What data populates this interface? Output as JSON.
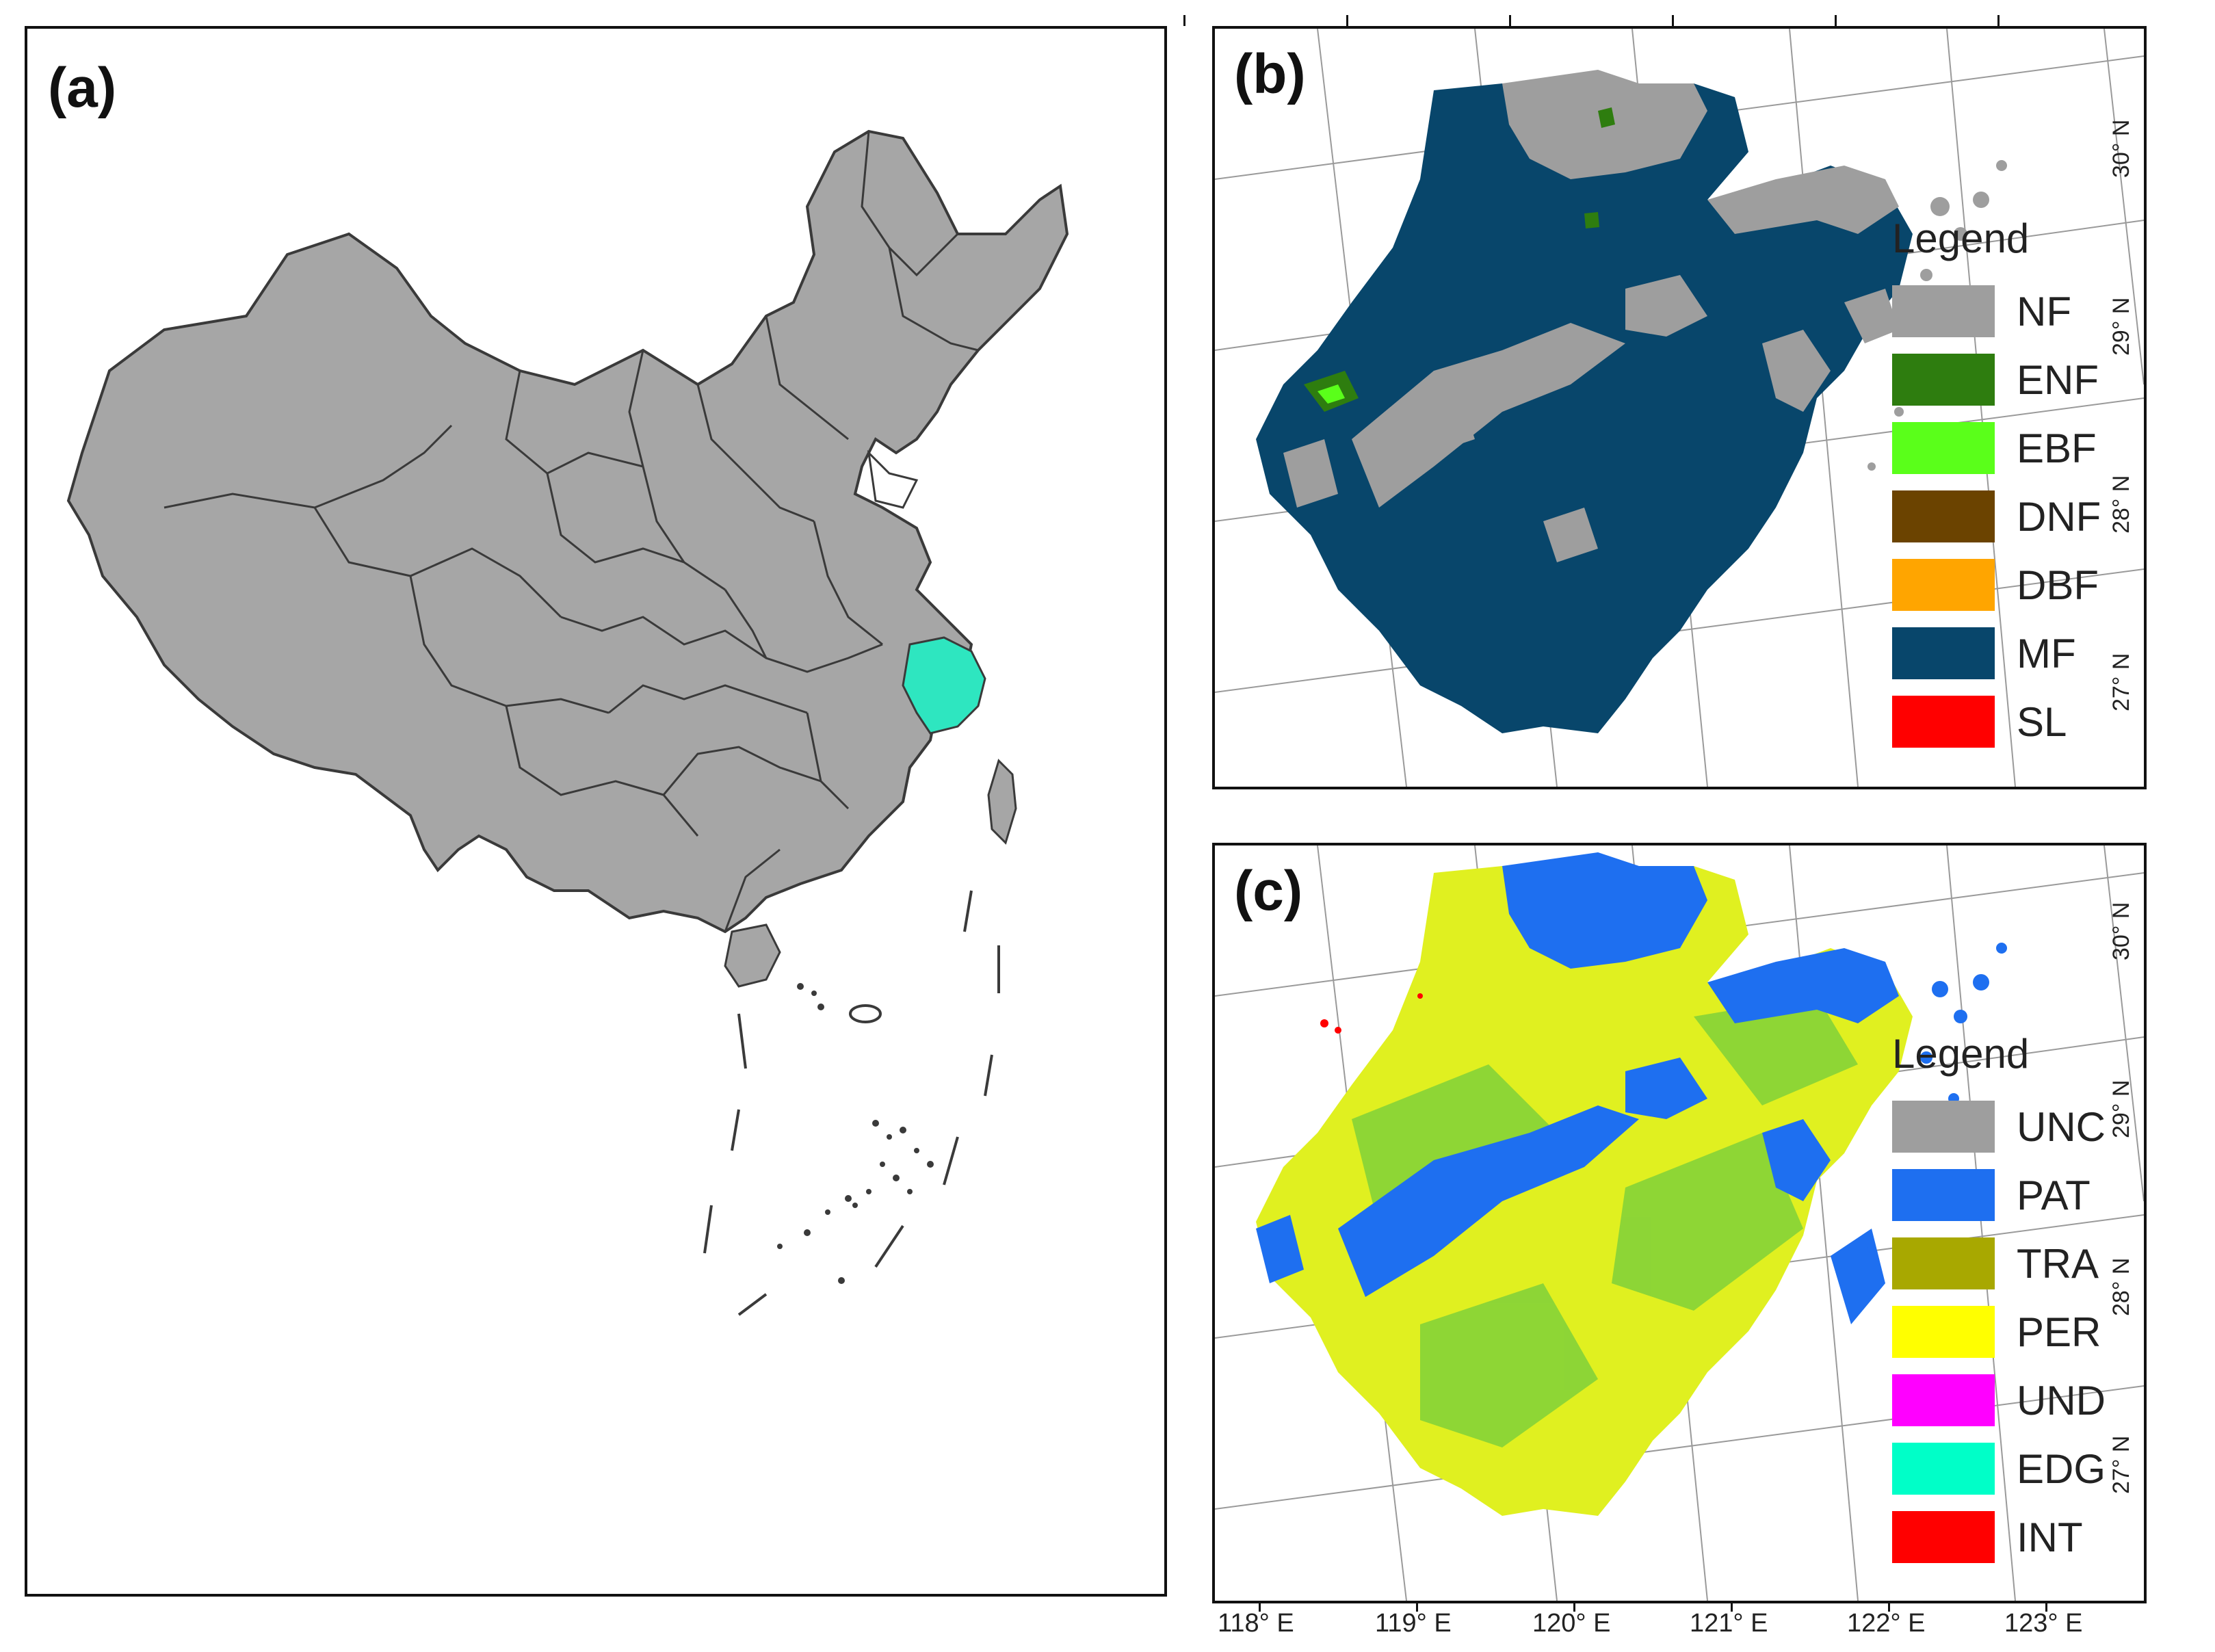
{
  "panels": {
    "a": {
      "label": "(a)"
    },
    "b": {
      "label": "(b)",
      "legend": {
        "title": "Legend",
        "items": [
          {
            "label": "NF",
            "color": "#9e9e9e"
          },
          {
            "label": "ENF",
            "color": "#2e7d0f"
          },
          {
            "label": "EBF",
            "color": "#5aff1a"
          },
          {
            "label": "DNF",
            "color": "#6b4300"
          },
          {
            "label": "DBF",
            "color": "#ffa500"
          },
          {
            "label": "MF",
            "color": "#08466b"
          },
          {
            "label": "SL",
            "color": "#ff0000"
          }
        ]
      }
    },
    "c": {
      "label": "(c)",
      "legend": {
        "title": "Legend",
        "items": [
          {
            "label": "UNC",
            "color": "#9e9e9e"
          },
          {
            "label": "PAT",
            "color": "#1e6ff0"
          },
          {
            "label": "TRA",
            "color": "#a8a800"
          },
          {
            "label": "PER",
            "color": "#ffff00"
          },
          {
            "label": "UND",
            "color": "#ff00ff"
          },
          {
            "label": "EDG",
            "color": "#00ffc8"
          },
          {
            "label": "INT",
            "color": "#ff0000"
          }
        ]
      }
    }
  },
  "lat_labels": [
    "30° N",
    "29° N",
    "28° N",
    "27° N"
  ],
  "lon_labels": [
    "118° E",
    "119° E",
    "120° E",
    "121° E",
    "122° E",
    "123° E"
  ],
  "colors": {
    "land": "#a6a6a6",
    "border": "#3a3a3a",
    "zhejiang": "#2ee6c0",
    "mf": "#08466b",
    "pat": "#1e6ff0",
    "per": "#e0f020",
    "tra": "#7fd13a"
  }
}
